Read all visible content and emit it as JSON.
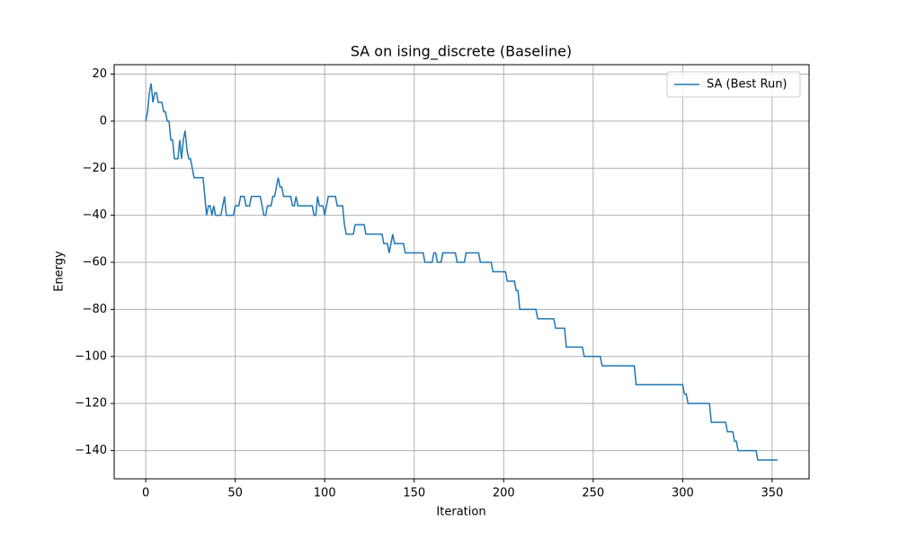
{
  "chart_data": {
    "type": "line",
    "title": "SA on ising_discrete (Baseline)",
    "xlabel": "Iteration",
    "ylabel": "Energy",
    "xlim": [
      -17.65,
      370.65
    ],
    "ylim": [
      -152,
      24
    ],
    "xticks": [
      0,
      50,
      100,
      150,
      200,
      250,
      300,
      350
    ],
    "yticks": [
      {
        "value": -140,
        "label": "−140"
      },
      {
        "value": -120,
        "label": "−120"
      },
      {
        "value": -100,
        "label": "−100"
      },
      {
        "value": -80,
        "label": "−80"
      },
      {
        "value": -60,
        "label": "−60"
      },
      {
        "value": -40,
        "label": "−40"
      },
      {
        "value": -20,
        "label": "−20"
      },
      0,
      20
    ],
    "grid": true,
    "legend": "upper right",
    "x": [
      0,
      1,
      2,
      3,
      4,
      5,
      6,
      7,
      9,
      10,
      11,
      12,
      13,
      14,
      15,
      16,
      18,
      19,
      20,
      21,
      22,
      23,
      24,
      25,
      27,
      32,
      33,
      34,
      35,
      36,
      37,
      38,
      39,
      42,
      43,
      44,
      45,
      49,
      50,
      52,
      53,
      55,
      56,
      58,
      59,
      64,
      65,
      66,
      67,
      68,
      70,
      71,
      72,
      73,
      74,
      75,
      76,
      77,
      81,
      82,
      83,
      84,
      85,
      93,
      94,
      95,
      96,
      97,
      99,
      100,
      101,
      102,
      106,
      107,
      110,
      111,
      112,
      116,
      117,
      122,
      123,
      132,
      133,
      135,
      136,
      137,
      138,
      139,
      144,
      145,
      155,
      156,
      160,
      161,
      162,
      163,
      165,
      166,
      173,
      174,
      178,
      179,
      186,
      187,
      193,
      194,
      201,
      202,
      206,
      207,
      208,
      209,
      218,
      219,
      228,
      229,
      234,
      235,
      244,
      245,
      254,
      255,
      273,
      274,
      300,
      301,
      302,
      303,
      315,
      316,
      324,
      325,
      328,
      329,
      330,
      331,
      341,
      342,
      353
    ],
    "series": [
      {
        "name": "SA (Best Run)",
        "color": "#1f77b4",
        "values": [
          0,
          4,
          12,
          16,
          8,
          12,
          12,
          8,
          8,
          4,
          4,
          0,
          0,
          -8,
          -8,
          -16,
          -16,
          -8,
          -16,
          -8,
          -4,
          -12,
          -16,
          -16,
          -24,
          -24,
          -32,
          -40,
          -36,
          -36,
          -40,
          -36,
          -40,
          -40,
          -36,
          -32,
          -40,
          -40,
          -36,
          -36,
          -32,
          -32,
          -36,
          -36,
          -32,
          -32,
          -36,
          -40,
          -40,
          -36,
          -36,
          -32,
          -32,
          -28,
          -24,
          -28,
          -28,
          -32,
          -32,
          -36,
          -36,
          -32,
          -36,
          -36,
          -40,
          -40,
          -32,
          -36,
          -36,
          -40,
          -36,
          -32,
          -32,
          -36,
          -36,
          -44,
          -48,
          -48,
          -44,
          -44,
          -48,
          -48,
          -52,
          -52,
          -56,
          -52,
          -48,
          -52,
          -52,
          -56,
          -56,
          -60,
          -60,
          -56,
          -56,
          -60,
          -60,
          -56,
          -56,
          -60,
          -60,
          -56,
          -56,
          -60,
          -60,
          -64,
          -64,
          -68,
          -68,
          -72,
          -72,
          -80,
          -80,
          -84,
          -84,
          -88,
          -88,
          -96,
          -96,
          -100,
          -100,
          -104,
          -104,
          -112,
          -112,
          -116,
          -116,
          -120,
          -120,
          -128,
          -128,
          -132,
          -132,
          -136,
          -136,
          -140,
          -140,
          -144,
          -144
        ]
      }
    ]
  }
}
